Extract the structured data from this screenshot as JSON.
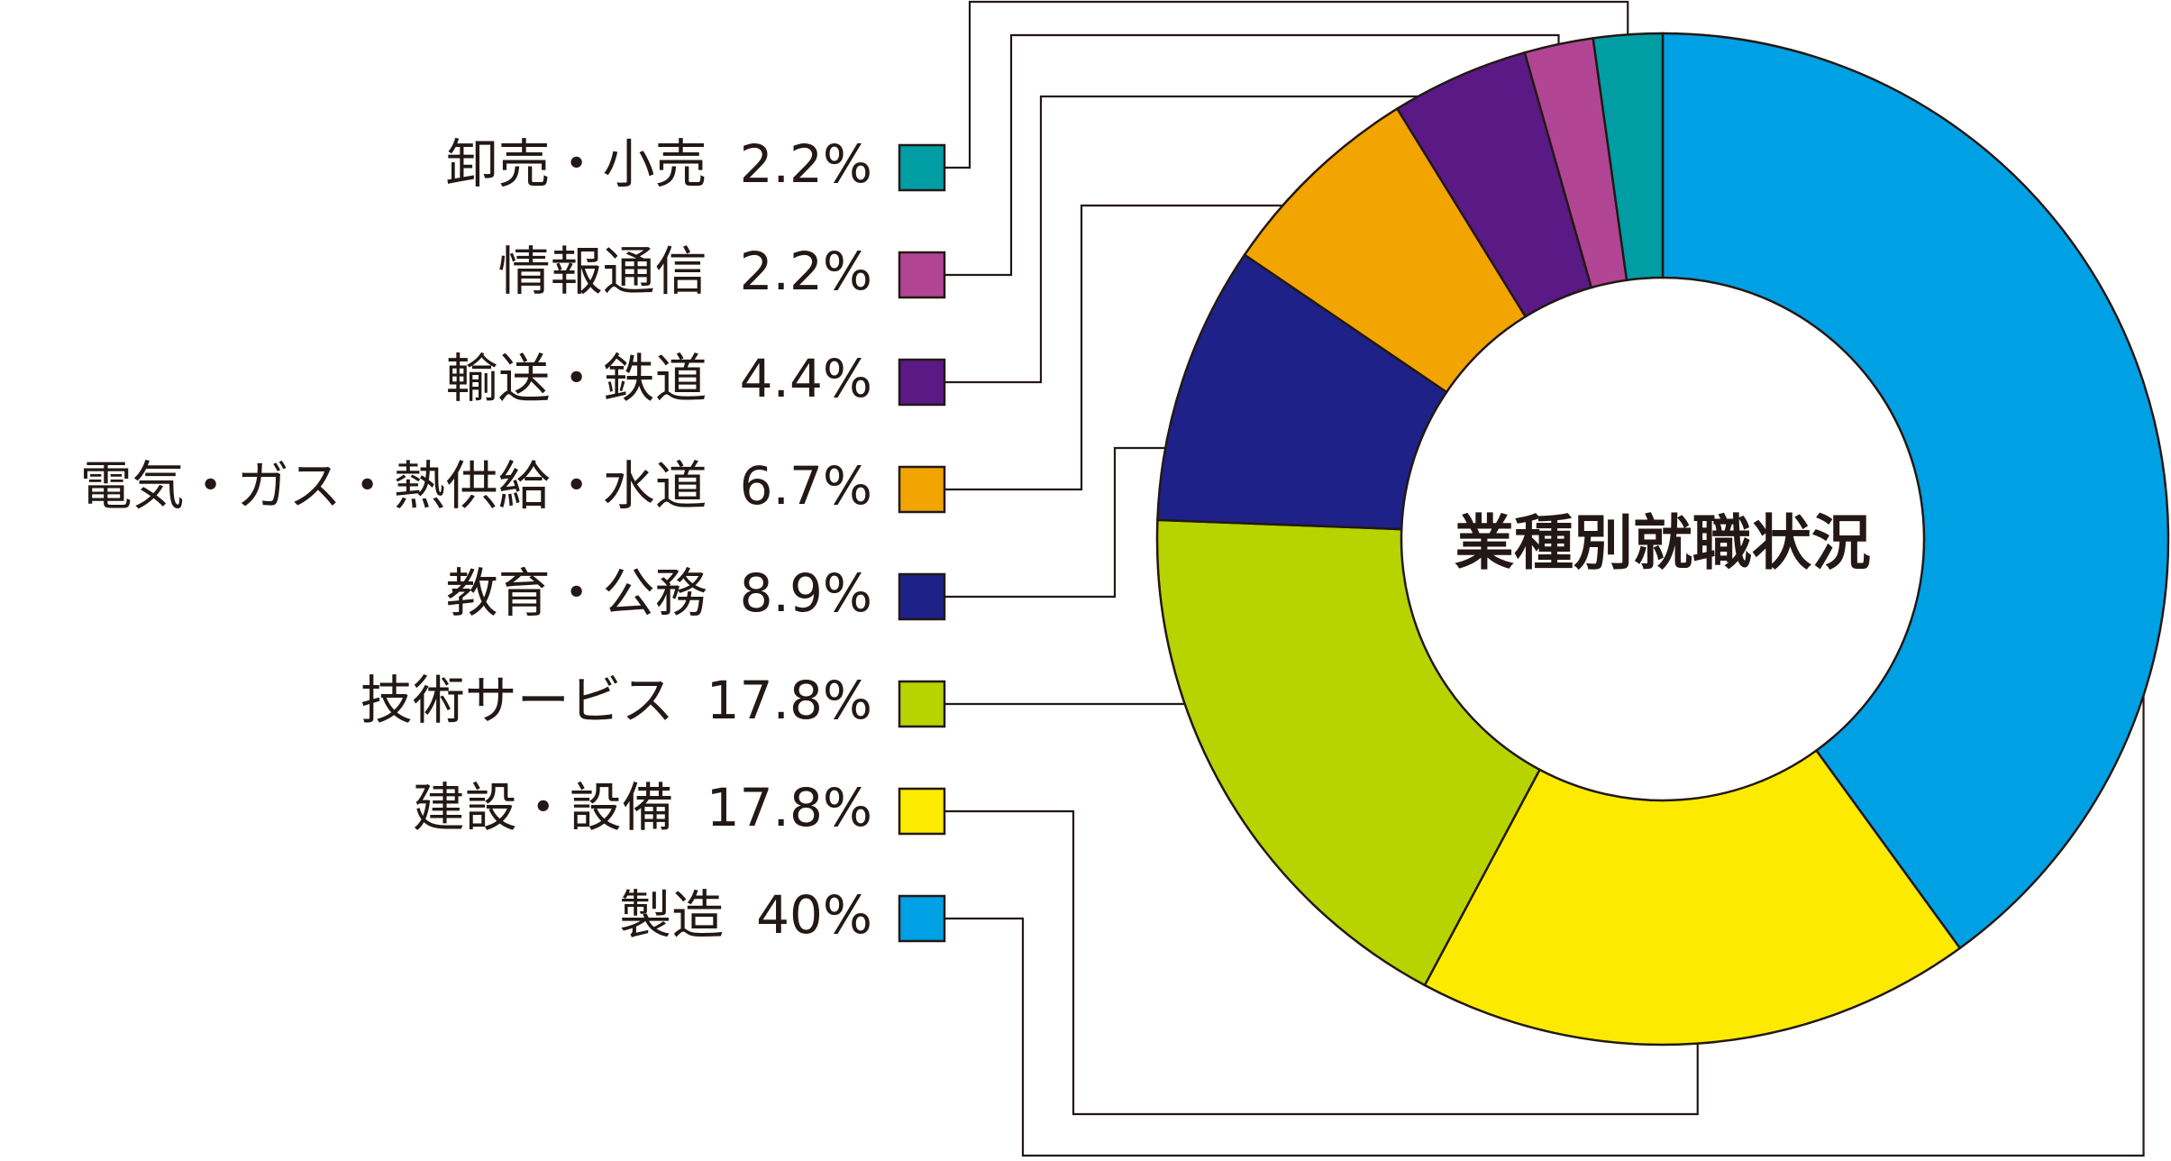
{
  "chart_data": {
    "type": "pie",
    "variant": "donut",
    "title": "業種別就職状況",
    "legend_placement": "left",
    "slices": [
      {
        "label": "製造",
        "value": 40,
        "value_label": "40%",
        "color": "#00A0E4"
      },
      {
        "label": "建設・設備",
        "value": 17.8,
        "value_label": "17.8%",
        "color": "#FCEB00"
      },
      {
        "label": "技術サービス",
        "value": 17.8,
        "value_label": "17.8%",
        "color": "#B7D300"
      },
      {
        "label": "教育・公務",
        "value": 8.9,
        "value_label": "8.9%",
        "color": "#1E2188"
      },
      {
        "label": "電気・ガス・熱供給・水道",
        "value": 6.7,
        "value_label": "6.7%",
        "color": "#F2A400"
      },
      {
        "label": "輸送・鉄道",
        "value": 4.4,
        "value_label": "4.4%",
        "color": "#5A1984"
      },
      {
        "label": "情報通信",
        "value": 2.2,
        "value_label": "2.2%",
        "color": "#B24593"
      },
      {
        "label": "卸売・小売",
        "value": 2.2,
        "value_label": "2.2%",
        "color": "#009DA5"
      }
    ],
    "legend_order": [
      "卸売・小売",
      "情報通信",
      "輸送・鉄道",
      "電気・ガス・熱供給・水道",
      "教育・公務",
      "技術サービス",
      "建設・設備",
      "製造"
    ]
  }
}
